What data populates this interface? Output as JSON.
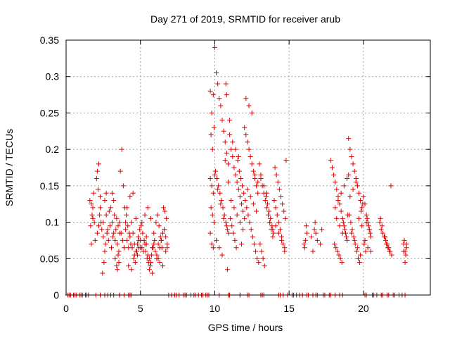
{
  "chart_data": {
    "type": "scatter",
    "title": "Day 271 of 2019, SRMTID for receiver arub",
    "xlabel": "GPS time / hours",
    "ylabel": "SRMTID / TECUs",
    "xlim": [
      0,
      24.5
    ],
    "ylim": [
      0,
      0.35
    ],
    "x_ticks": [
      0,
      5,
      10,
      15,
      20
    ],
    "x_tick_labels": [
      "0",
      "5",
      "10",
      "15",
      "20"
    ],
    "y_ticks": [
      0,
      0.05,
      0.1,
      0.15,
      0.2,
      0.25,
      0.3,
      0.35
    ],
    "y_tick_labels": [
      "0",
      "0.05",
      "0.1",
      "0.15",
      "0.2",
      "0.25",
      "0.3",
      "0.35"
    ],
    "grid": true,
    "legend": "none",
    "marker": "plus",
    "marker_color": "#e00000",
    "series": [
      {
        "name": "SRMTID",
        "x": [
          0.1,
          0.3,
          0.5,
          0.7,
          0.9,
          1.1,
          1.3,
          1.5,
          2.0,
          2.3,
          2.6,
          3.0,
          3.2,
          3.6,
          3.9,
          4.2,
          4.4,
          7.1,
          7.3,
          7.6,
          7.9,
          8.1,
          8.4,
          8.7,
          8.9,
          9.2,
          9.4,
          9.6,
          10.3,
          11.0,
          11.7,
          12.2,
          13.1,
          13.3,
          14.3,
          14.6,
          15.2,
          15.5,
          15.9,
          16.2,
          16.6,
          16.9,
          17.3,
          17.7,
          18.1,
          18.6,
          20.2,
          20.6,
          20.9,
          21.3,
          21.7,
          22.0,
          22.4,
          22.8,
          1.6,
          1.7,
          1.8,
          1.9,
          1.75,
          1.85,
          1.65,
          1.95,
          1.7,
          1.8,
          2.1,
          2.2,
          2.05,
          2.3,
          2.15,
          2.25,
          2.4,
          2.35,
          2.5,
          2.45,
          2.1,
          2.2,
          2.3,
          2.5,
          2.6,
          2.7,
          2.8,
          2.9,
          2.65,
          2.75,
          2.85,
          2.95,
          2.55,
          2.6,
          2.7,
          3.0,
          3.1,
          3.2,
          3.3,
          3.4,
          3.5,
          3.05,
          3.15,
          3.25,
          3.35,
          3.45,
          3.55,
          3.6,
          3.7,
          3.8,
          3.9,
          3.65,
          3.75,
          3.85,
          3.95,
          3.5,
          3.55,
          3.4,
          3.45,
          3.3,
          3.6,
          3.2,
          3.1,
          4.0,
          4.1,
          4.2,
          4.3,
          4.4,
          4.5,
          4.6,
          4.7,
          4.8,
          4.9,
          4.05,
          4.15,
          4.25,
          4.35,
          4.45,
          4.55,
          4.65,
          4.75,
          4.85,
          4.95,
          4.1,
          4.3,
          4.5,
          4.7,
          4.9,
          4.2,
          4.4,
          4.6,
          4.8,
          4.0,
          5.0,
          5.1,
          5.2,
          5.3,
          5.4,
          5.5,
          5.6,
          5.7,
          5.8,
          5.9,
          5.05,
          5.15,
          5.25,
          5.35,
          5.45,
          5.55,
          5.65,
          5.75,
          5.85,
          5.95,
          5.1,
          5.3,
          5.5,
          5.7,
          5.9,
          5.2,
          5.4,
          5.6,
          5.8,
          5.0,
          6.0,
          6.1,
          6.2,
          6.3,
          6.4,
          6.5,
          6.6,
          6.7,
          6.8,
          6.05,
          6.15,
          6.25,
          6.35,
          6.45,
          6.55,
          6.65,
          6.75,
          6.1,
          6.3,
          6.5,
          6.7,
          6.2,
          6.4,
          6.6,
          6.8,
          9.7,
          9.8,
          9.9,
          9.75,
          9.85,
          9.95,
          9.7,
          9.8,
          9.9,
          9.85,
          9.75,
          9.95,
          9.8,
          9.9,
          9.7,
          10.0,
          10.1,
          10.2,
          10.3,
          10.4,
          10.5,
          10.6,
          10.7,
          10.8,
          10.9,
          10.05,
          10.15,
          10.25,
          10.35,
          10.45,
          10.55,
          10.65,
          10.75,
          10.85,
          10.95,
          10.1,
          10.3,
          10.5,
          10.7,
          10.9,
          10.2,
          10.4,
          10.6,
          10.8,
          10.0,
          10.75,
          10.8,
          10.85,
          11.0,
          11.1,
          11.2,
          11.3,
          11.4,
          11.5,
          11.6,
          11.7,
          11.8,
          11.9,
          11.05,
          11.15,
          11.25,
          11.35,
          11.45,
          11.55,
          11.65,
          11.75,
          11.85,
          11.95,
          11.1,
          11.3,
          11.5,
          11.7,
          11.9,
          11.2,
          11.4,
          11.6,
          11.8,
          11.0,
          12.0,
          12.1,
          12.2,
          12.3,
          12.4,
          12.5,
          12.6,
          12.7,
          12.8,
          12.9,
          12.05,
          12.15,
          12.25,
          12.35,
          12.45,
          12.55,
          12.65,
          12.75,
          12.85,
          12.95,
          12.1,
          12.3,
          12.5,
          12.7,
          12.9,
          12.2,
          12.4,
          12.6,
          12.8,
          12.0,
          13.0,
          13.1,
          13.2,
          13.3,
          13.4,
          13.5,
          13.6,
          13.7,
          13.8,
          13.9,
          13.05,
          13.15,
          13.25,
          13.35,
          13.45,
          13.55,
          13.65,
          13.75,
          13.85,
          13.95,
          13.1,
          13.3,
          13.5,
          13.7,
          13.9,
          14.0,
          14.1,
          14.2,
          14.3,
          14.4,
          14.5,
          14.6,
          14.7,
          14.8,
          14.05,
          14.15,
          14.25,
          14.35,
          14.45,
          14.55,
          14.65,
          14.75,
          14.1,
          14.3,
          14.5,
          14.7,
          16.0,
          16.1,
          16.2,
          16.05,
          16.15,
          16.5,
          16.7,
          16.8,
          16.9,
          17.1,
          17.2,
          16.6,
          16.75,
          17.8,
          17.9,
          18.0,
          18.1,
          18.2,
          18.3,
          18.4,
          18.5,
          18.6,
          18.7,
          18.8,
          18.9,
          18.05,
          18.15,
          18.25,
          18.35,
          18.45,
          18.55,
          18.65,
          18.75,
          18.85,
          18.95,
          18.1,
          18.3,
          18.5,
          18.7,
          18.9,
          18.2,
          18.4,
          18.6,
          19.0,
          19.1,
          19.2,
          19.3,
          19.4,
          19.5,
          19.6,
          19.7,
          19.8,
          19.9,
          19.05,
          19.15,
          19.25,
          19.35,
          19.45,
          19.55,
          19.65,
          19.75,
          19.85,
          19.95,
          19.1,
          19.3,
          19.5,
          19.7,
          19.9,
          19.2,
          19.4,
          19.6,
          19.8,
          19.0,
          20.0,
          20.1,
          20.2,
          20.3,
          20.4,
          20.5,
          20.05,
          20.15,
          20.25,
          20.35,
          20.45,
          20.1,
          20.3,
          20.5,
          20.2,
          20.4,
          21.1,
          21.2,
          21.3,
          21.4,
          21.5,
          21.6,
          21.7,
          21.8,
          21.9,
          21.15,
          21.25,
          21.45,
          21.55,
          21.65,
          21.75,
          21.85,
          22.7,
          22.8,
          22.9,
          22.75,
          22.85,
          22.8,
          22.7,
          22.9,
          0.2,
          0.6,
          1.0,
          1.4,
          2.3,
          2.8,
          3.6,
          4.3,
          6.9,
          7.4,
          8.0,
          8.6,
          9.1,
          9.5,
          10.9,
          11.7,
          12.3,
          13.2,
          14.4,
          14.9,
          15.3,
          15.7,
          16.3,
          16.8,
          17.4,
          17.8,
          18.4,
          20.1,
          20.7,
          21.2,
          21.6,
          22.1,
          22.6
        ],
        "y": [
          0,
          0,
          0,
          0,
          0,
          0,
          0,
          0,
          0,
          0,
          0,
          0,
          0,
          0,
          0,
          0,
          0,
          0,
          0,
          0,
          0,
          0,
          0,
          0,
          0,
          0,
          0,
          0,
          0,
          0,
          0,
          0,
          0,
          0,
          0,
          0,
          0,
          0,
          0,
          0,
          0,
          0,
          0,
          0,
          0,
          0,
          0,
          0,
          0,
          0,
          0,
          0,
          0,
          0,
          0.13,
          0.125,
          0.12,
          0.1,
          0.11,
          0.14,
          0.095,
          0.075,
          0.07,
          0.105,
          0.17,
          0.18,
          0.16,
          0.135,
          0.145,
          0.11,
          0.09,
          0.1,
          0.08,
          0.03,
          0.085,
          0.095,
          0.12,
          0.1,
          0.13,
          0.11,
          0.09,
          0.115,
          0.07,
          0.085,
          0.075,
          0.095,
          0.045,
          0.06,
          0.14,
          0.12,
          0.1,
          0.085,
          0.075,
          0.105,
          0.095,
          0.065,
          0.08,
          0.11,
          0.09,
          0.07,
          0.06,
          0.1,
          0.085,
          0.075,
          0.065,
          0.17,
          0.2,
          0.15,
          0.12,
          0.055,
          0.045,
          0.04,
          0.035,
          0.05,
          0.085,
          0.13,
          0.14,
          0.09,
          0.075,
          0.065,
          0.08,
          0.1,
          0.085,
          0.07,
          0.06,
          0.055,
          0.075,
          0.11,
          0.095,
          0.085,
          0.07,
          0.065,
          0.05,
          0.045,
          0.06,
          0.08,
          0.09,
          0.12,
          0.135,
          0.14,
          0.105,
          0.065,
          0.04,
          0.035,
          0.055,
          0.07,
          0.1,
          0.075,
          0.065,
          0.06,
          0.07,
          0.08,
          0.055,
          0.05,
          0.045,
          0.065,
          0.07,
          0.095,
          0.085,
          0.075,
          0.06,
          0.05,
          0.045,
          0.04,
          0.055,
          0.065,
          0.075,
          0.1,
          0.11,
          0.12,
          0.105,
          0.085,
          0.06,
          0.07,
          0.035,
          0.03,
          0.065,
          0.06,
          0.055,
          0.05,
          0.065,
          0.075,
          0.085,
          0.09,
          0.08,
          0.07,
          0.1,
          0.11,
          0.095,
          0.08,
          0.065,
          0.12,
          0.115,
          0.105,
          0.05,
          0.045,
          0.04,
          0.06,
          0.07,
          0.075,
          0.09,
          0.065,
          0.16,
          0.15,
          0.14,
          0.12,
          0.11,
          0.1,
          0.085,
          0.07,
          0.065,
          0.2,
          0.22,
          0.23,
          0.25,
          0.275,
          0.28,
          0.34,
          0.305,
          0.29,
          0.27,
          0.26,
          0.24,
          0.225,
          0.21,
          0.195,
          0.18,
          0.17,
          0.16,
          0.15,
          0.14,
          0.13,
          0.12,
          0.11,
          0.1,
          0.09,
          0.085,
          0.075,
          0.065,
          0.055,
          0.185,
          0.155,
          0.145,
          0.125,
          0.105,
          0.095,
          0.165,
          0.29,
          0.275,
          0.035,
          0.22,
          0.2,
          0.19,
          0.175,
          0.165,
          0.155,
          0.145,
          0.135,
          0.125,
          0.115,
          0.105,
          0.095,
          0.085,
          0.075,
          0.065,
          0.185,
          0.17,
          0.16,
          0.15,
          0.14,
          0.13,
          0.12,
          0.11,
          0.1,
          0.09,
          0.21,
          0.2,
          0.19,
          0.07,
          0.24,
          0.23,
          0.22,
          0.21,
          0.2,
          0.19,
          0.18,
          0.17,
          0.16,
          0.15,
          0.14,
          0.13,
          0.12,
          0.11,
          0.1,
          0.09,
          0.08,
          0.07,
          0.06,
          0.05,
          0.045,
          0.27,
          0.26,
          0.25,
          0.165,
          0.155,
          0.145,
          0.135,
          0.125,
          0.115,
          0.105,
          0.18,
          0.165,
          0.15,
          0.14,
          0.13,
          0.12,
          0.11,
          0.1,
          0.09,
          0.08,
          0.07,
          0.06,
          0.05,
          0.04,
          0.135,
          0.125,
          0.115,
          0.105,
          0.095,
          0.085,
          0.16,
          0.15,
          0.14,
          0.1,
          0.09,
          0.13,
          0.12,
          0.11,
          0.1,
          0.09,
          0.08,
          0.07,
          0.06,
          0.185,
          0.175,
          0.165,
          0.155,
          0.145,
          0.135,
          0.125,
          0.115,
          0.105,
          0.095,
          0.085,
          0.075,
          0.065,
          0.07,
          0.075,
          0.085,
          0.065,
          0.095,
          0.08,
          0.09,
          0.085,
          0.075,
          0.07,
          0.09,
          0.06,
          0.1,
          0.185,
          0.175,
          0.165,
          0.155,
          0.145,
          0.135,
          0.125,
          0.115,
          0.105,
          0.095,
          0.085,
          0.075,
          0.07,
          0.065,
          0.06,
          0.055,
          0.05,
          0.045,
          0.1,
          0.09,
          0.08,
          0.11,
          0.12,
          0.13,
          0.14,
          0.15,
          0.16,
          0.105,
          0.095,
          0.085,
          0.215,
          0.2,
          0.19,
          0.18,
          0.17,
          0.16,
          0.15,
          0.14,
          0.13,
          0.12,
          0.11,
          0.1,
          0.09,
          0.08,
          0.07,
          0.06,
          0.05,
          0.045,
          0.115,
          0.125,
          0.135,
          0.145,
          0.155,
          0.105,
          0.095,
          0.085,
          0.075,
          0.065,
          0.055,
          0.165,
          0.135,
          0.125,
          0.11,
          0.1,
          0.09,
          0.08,
          0.07,
          0.06,
          0.105,
          0.095,
          0.085,
          0.075,
          0.065,
          0.06,
          0.1,
          0.09,
          0.1,
          0.09,
          0.085,
          0.08,
          0.075,
          0.07,
          0.065,
          0.06,
          0.055,
          0.105,
          0.095,
          0.08,
          0.07,
          0.065,
          0.06,
          0.15,
          0.07,
          0.06,
          0.065,
          0.075,
          0.055,
          0.045,
          0.06,
          0.07,
          0,
          0,
          0,
          0,
          0,
          0,
          0,
          0,
          0,
          0,
          0,
          0,
          0,
          0,
          0,
          0,
          0,
          0,
          0,
          0,
          0,
          0,
          0,
          0,
          0,
          0,
          0,
          0,
          0,
          0,
          0,
          0,
          0
        ]
      }
    ]
  }
}
